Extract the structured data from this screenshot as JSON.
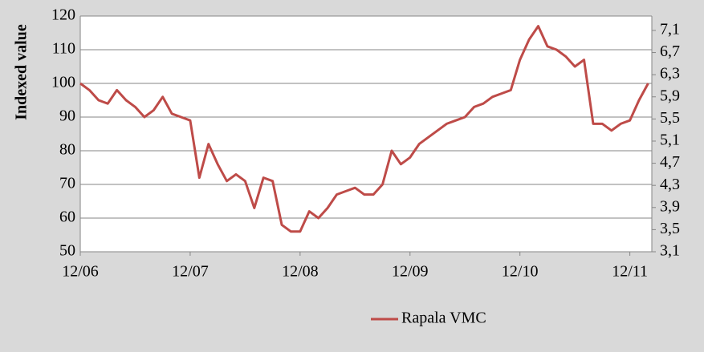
{
  "chart_data": {
    "type": "line",
    "y_label": "Indexed value",
    "x": [
      "12/06",
      null,
      null,
      null,
      null,
      null,
      null,
      null,
      null,
      null,
      null,
      null,
      "12/07",
      null,
      null,
      null,
      null,
      null,
      null,
      null,
      null,
      null,
      null,
      null,
      "12/08",
      null,
      null,
      null,
      null,
      null,
      null,
      null,
      null,
      null,
      null,
      null,
      "12/09",
      null,
      null,
      null,
      null,
      null,
      null,
      null,
      null,
      null,
      null,
      null,
      "12/10",
      null,
      null,
      null,
      null,
      null,
      null,
      null,
      null,
      null,
      null,
      null,
      "12/11",
      null,
      null
    ],
    "series": [
      {
        "name": "Rapala VMC",
        "color": "#be4b48",
        "values": [
          100,
          98,
          95,
          94,
          98,
          95,
          93,
          90,
          92,
          96,
          91,
          90,
          89,
          72,
          82,
          76,
          71,
          73,
          71,
          63,
          72,
          71,
          58,
          56,
          56,
          62,
          60,
          63,
          67,
          68,
          69,
          67,
          67,
          70,
          80,
          76,
          78,
          82,
          84,
          86,
          88,
          89,
          90,
          93,
          94,
          96,
          97,
          98,
          107,
          113,
          117,
          111,
          110,
          108,
          105,
          107,
          88,
          88,
          86,
          88,
          89,
          95,
          100
        ]
      }
    ],
    "ylim": [
      50,
      120
    ],
    "yticks": [
      50,
      60,
      70,
      80,
      90,
      100,
      110,
      120
    ],
    "y2lim": [
      3.1,
      7.36
    ],
    "y2ticks": [
      {
        "value": 3.1,
        "label": "3,1"
      },
      {
        "value": 3.5,
        "label": "3,5"
      },
      {
        "value": 3.9,
        "label": "3,9"
      },
      {
        "value": 4.3,
        "label": "4,3"
      },
      {
        "value": 4.7,
        "label": "4,7"
      },
      {
        "value": 5.1,
        "label": "5,1"
      },
      {
        "value": 5.5,
        "label": "5,5"
      },
      {
        "value": 5.9,
        "label": "5,9"
      },
      {
        "value": 6.3,
        "label": "6,3"
      },
      {
        "value": 6.7,
        "label": "6,7"
      },
      {
        "value": 7.1,
        "label": "7,1"
      }
    ],
    "grid": true,
    "legend": "bottom"
  }
}
